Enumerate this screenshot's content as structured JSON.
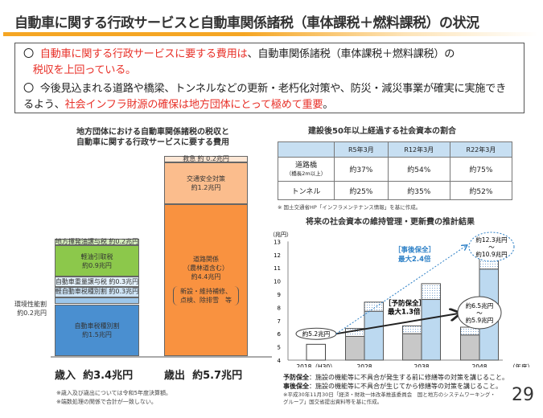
{
  "title": "自動車に関する行政サービスと自動車関係諸税（車体課税＋燃料課税）の状況",
  "summary": {
    "b1_mark": "〇",
    "b1_red": "自動車に関する行政サービスに要する費用は",
    "b1_text": "、自動車関係諸税（車体課税＋燃料課税）の",
    "b1_red2": "税収を上回っている。",
    "b2_mark": "〇",
    "b2_text": "今後見込まれる道路や橋梁、トンネルなどの更新・老朽化対策や、防災・減災事業が確実に実施できるよう、",
    "b2_red": "社会インフラ財源の確保は地方団体にとって極めて重要",
    "b2_end": "。"
  },
  "left_chart": {
    "title1": "地方団体における自動車関係諸税の税収と",
    "title2": "自動車に関する行政サービスに要する費用",
    "revenue": {
      "label": "歳入",
      "total": "約3.4兆円",
      "segments": [
        {
          "name": "自動車税種別割",
          "value_label": "約1.5兆円",
          "value": 1.5,
          "color": "#4a8fd0"
        },
        {
          "name": "環境性能割",
          "value_label": "約0.2兆円",
          "value": 0.2,
          "color": "#9cc6ea"
        },
        {
          "name": "軽自動車税種別割",
          "value_label": "約0.3兆円",
          "value": 0.3,
          "color": "#cde3f5"
        },
        {
          "name": "自動車重量譲与税",
          "value_label": "約0.3兆円",
          "value": 0.3,
          "color": "#e3f0fa"
        },
        {
          "name": "軽油引取税",
          "value_label": "約0.9兆円",
          "value": 0.9,
          "color": "#8cc84b"
        },
        {
          "name": "地方揮発油譲与税",
          "value_label": "約0.2兆円",
          "value": 0.2,
          "color": "#d6ecc0"
        }
      ]
    },
    "expenditure": {
      "label": "歳出",
      "total": "約5.7兆円",
      "segments": [
        {
          "name": "道路関係",
          "sub": "（農林道含む）",
          "value_label": "約4.4兆円",
          "value": 4.4,
          "color": "#f99240",
          "note1": "新設・維持補修、",
          "note2": "点検、除排雪　等"
        },
        {
          "name": "交通安全対策",
          "value_label": "約1.2兆円",
          "value": 1.2,
          "color": "#fbbd8d"
        },
        {
          "name": "救急",
          "value_label": "約 0.2兆円",
          "value": 0.2,
          "color": "#fde6d4"
        }
      ]
    },
    "note1": "※歳入及び歳出については令和5年度決算額。",
    "note2": "※端数処理の関係で合計が一致しない。"
  },
  "table": {
    "title": "建設後50年以上経過する社会資本の割合",
    "headers": [
      "R5年3月",
      "R12年3月",
      "R22年3月"
    ],
    "rows": [
      {
        "label": "道路橋",
        "sublabel": "（橋長2m以上）",
        "values": [
          "約37%",
          "約54%",
          "約75%"
        ]
      },
      {
        "label": "トンネル",
        "values": [
          "約25%",
          "約35%",
          "約52%"
        ]
      }
    ],
    "source": "※ 国土交通省HP「インフラメンテナンス情報」を基に作成。"
  },
  "chart_data": {
    "type": "bar",
    "title": "将来の社会資本の維持管理・更新費の推計結果",
    "ylabel": "（兆円）",
    "xlabel_unit": "（年度）",
    "ylim": [
      4,
      13
    ],
    "yticks": [
      4,
      5,
      6,
      7,
      8,
      9,
      10,
      11,
      12,
      13
    ],
    "categories": [
      "2018（H30）",
      "2028",
      "2038",
      "2048"
    ],
    "series": [
      {
        "name": "予防保全",
        "values": [
          5.2,
          5.8,
          6.0,
          5.9
        ],
        "upper": [
          null,
          6.4,
          6.6,
          6.5
        ]
      },
      {
        "name": "事後保全",
        "values": [
          null,
          7.7,
          8.6,
          10.9
        ],
        "upper": [
          null,
          8.4,
          9.8,
          12.3
        ]
      }
    ],
    "annotations": {
      "base": "約5.2兆円",
      "reactive_label": "［事後保全］",
      "reactive_ratio": "最大2.4倍",
      "preventive_label": "［予防保全］",
      "preventive_ratio": "最大1.3倍",
      "pv_hi": "約6.5兆円",
      "pv_lo": "約5.9兆円",
      "rv_hi": "約12.3兆円",
      "rv_lo": "約10.9兆円",
      "tilde": "～"
    },
    "def1_term": "予防保全",
    "def1": "：施設の機能等に不具合が発生する前に修繕等の対策を講じること。",
    "def2_term": "事後保全",
    "def2": "：施設の機能等に不具合が生じてから修繕等の対策を講じること。",
    "source": "※平成30年11月30日「経済・財政一体改革推進委員会　国と地方のシステムワーキング・グループ」国交省提出資料等を基に作成。"
  },
  "page_number": "29",
  "colors": {
    "accent": "#f5a623",
    "red": "#e8322a",
    "blue": "#2b7fc6"
  }
}
